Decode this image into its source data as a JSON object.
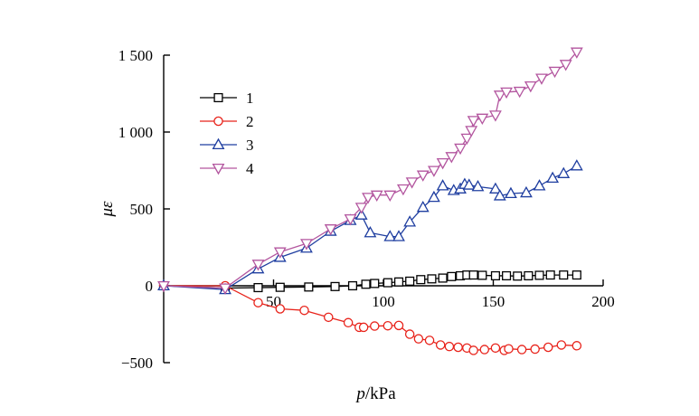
{
  "chart_data": {
    "type": "line",
    "xlabel": {
      "var": "p",
      "unit": "/kPa"
    },
    "ylabel": {
      "var": "μ",
      "sym": "ε"
    },
    "xlim": [
      0,
      200
    ],
    "ylim": [
      -500,
      1500
    ],
    "x_ticks": [
      {
        "value": 50,
        "label": "50"
      },
      {
        "value": 100,
        "label": "100"
      },
      {
        "value": 150,
        "label": "150"
      },
      {
        "value": 200,
        "label": "200"
      }
    ],
    "y_ticks": [
      {
        "value": -500,
        "label": "−500"
      },
      {
        "value": 0,
        "label": "0"
      },
      {
        "value": 500,
        "label": "500"
      },
      {
        "value": 1000,
        "label": "1 000"
      },
      {
        "value": 1500,
        "label": "1 500"
      }
    ],
    "grid": false,
    "legend_position": "top-left",
    "series": [
      {
        "name": "1",
        "color": "#000000",
        "marker": "square",
        "points": [
          [
            0,
            0
          ],
          [
            28,
            -15
          ],
          [
            43,
            -12
          ],
          [
            53,
            -10
          ],
          [
            66,
            -8
          ],
          [
            78,
            -5
          ],
          [
            86,
            0
          ],
          [
            92,
            10
          ],
          [
            96,
            15
          ],
          [
            102,
            20
          ],
          [
            107,
            25
          ],
          [
            112,
            30
          ],
          [
            117,
            40
          ],
          [
            122,
            45
          ],
          [
            127,
            50
          ],
          [
            131,
            60
          ],
          [
            135,
            65
          ],
          [
            138,
            70
          ],
          [
            141,
            70
          ],
          [
            145,
            68
          ],
          [
            151,
            65
          ],
          [
            156,
            65
          ],
          [
            161,
            63
          ],
          [
            166,
            65
          ],
          [
            171,
            68
          ],
          [
            176,
            70
          ],
          [
            182,
            70
          ],
          [
            188,
            70
          ]
        ]
      },
      {
        "name": "2",
        "color": "#e8231b",
        "marker": "circle",
        "points": [
          [
            0,
            0
          ],
          [
            28,
            0
          ],
          [
            43,
            -110
          ],
          [
            53,
            -150
          ],
          [
            64,
            -160
          ],
          [
            75,
            -205
          ],
          [
            84,
            -240
          ],
          [
            89,
            -270
          ],
          [
            91,
            -270
          ],
          [
            96,
            -262
          ],
          [
            102,
            -260
          ],
          [
            107,
            -258
          ],
          [
            112,
            -315
          ],
          [
            116,
            -345
          ],
          [
            121,
            -355
          ],
          [
            126,
            -385
          ],
          [
            130,
            -395
          ],
          [
            134,
            -400
          ],
          [
            138,
            -405
          ],
          [
            141,
            -420
          ],
          [
            146,
            -415
          ],
          [
            151,
            -405
          ],
          [
            155,
            -420
          ],
          [
            157,
            -410
          ],
          [
            163,
            -415
          ],
          [
            169,
            -412
          ],
          [
            175,
            -400
          ],
          [
            181,
            -385
          ],
          [
            188,
            -390
          ]
        ]
      },
      {
        "name": "3",
        "color": "#1f3ea0",
        "marker": "triangle-up",
        "points": [
          [
            0,
            0
          ],
          [
            28,
            -25
          ],
          [
            43,
            110
          ],
          [
            53,
            185
          ],
          [
            65,
            245
          ],
          [
            76,
            355
          ],
          [
            85,
            425
          ],
          [
            90,
            460
          ],
          [
            94,
            345
          ],
          [
            103,
            320
          ],
          [
            107,
            320
          ],
          [
            112,
            415
          ],
          [
            118,
            510
          ],
          [
            123,
            575
          ],
          [
            127,
            650
          ],
          [
            132,
            620
          ],
          [
            135,
            630
          ],
          [
            137,
            660
          ],
          [
            139,
            655
          ],
          [
            143,
            645
          ],
          [
            151,
            630
          ],
          [
            153,
            585
          ],
          [
            158,
            600
          ],
          [
            165,
            605
          ],
          [
            171,
            650
          ],
          [
            177,
            700
          ],
          [
            182,
            730
          ],
          [
            188,
            780
          ]
        ]
      },
      {
        "name": "4",
        "color": "#b3569f",
        "marker": "triangle-down",
        "points": [
          [
            0,
            0
          ],
          [
            28,
            -15
          ],
          [
            43,
            140
          ],
          [
            53,
            220
          ],
          [
            65,
            275
          ],
          [
            76,
            370
          ],
          [
            85,
            435
          ],
          [
            90,
            510
          ],
          [
            93,
            575
          ],
          [
            97,
            590
          ],
          [
            103,
            590
          ],
          [
            109,
            630
          ],
          [
            113,
            675
          ],
          [
            118,
            720
          ],
          [
            123,
            750
          ],
          [
            127,
            800
          ],
          [
            131,
            840
          ],
          [
            135,
            895
          ],
          [
            138,
            960
          ],
          [
            140,
            1010
          ],
          [
            141,
            1075
          ],
          [
            145,
            1090
          ],
          [
            151,
            1110
          ],
          [
            153,
            1240
          ],
          [
            156,
            1260
          ],
          [
            162,
            1265
          ],
          [
            167,
            1300
          ],
          [
            172,
            1350
          ],
          [
            178,
            1395
          ],
          [
            183,
            1440
          ],
          [
            188,
            1520
          ]
        ]
      }
    ]
  }
}
